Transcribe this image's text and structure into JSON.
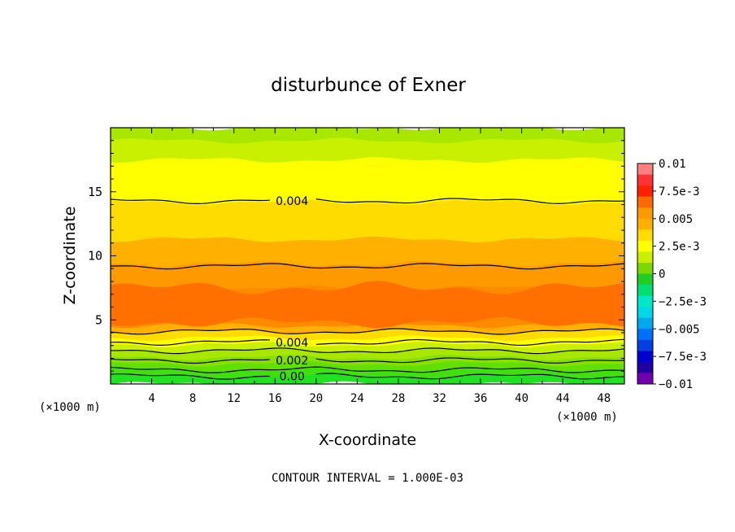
{
  "chart_data": {
    "type": "heatmap",
    "title": "disturbunce of Exner",
    "xlabel": "X-coordinate",
    "ylabel": "Z-coordinate",
    "x_unit": "(×1000 m)",
    "y_unit": "(×1000 m)",
    "footer": "CONTOUR INTERVAL = 1.000E-03",
    "xlim": [
      0,
      50
    ],
    "ylim": [
      0,
      20
    ],
    "x_ticks": [
      4,
      8,
      12,
      16,
      20,
      24,
      28,
      32,
      36,
      40,
      44,
      48
    ],
    "x_tick_labels": [
      "4",
      "8",
      "12",
      "16",
      "20",
      "24",
      "28",
      "32",
      "36",
      "40",
      "44",
      "48"
    ],
    "y_ticks": [
      5,
      10,
      15
    ],
    "y_tick_labels": [
      "5",
      "10",
      "15"
    ],
    "contour_interval": 0.001,
    "color_levels": [
      -0.01,
      -0.0075,
      -0.005,
      -0.0025,
      0,
      0.0025,
      0.005,
      0.0075,
      0.01
    ],
    "colorbar_labels": [
      "0.01",
      "7.5e-3",
      "0.005",
      "2.5e-3",
      "0",
      "−2.5e-3",
      "−0.005",
      "−7.5e-3",
      "−0.01"
    ],
    "colorbar_colors": [
      "#ff8080",
      "#ff3333",
      "#ff2000",
      "#ff6a00",
      "#ff9900",
      "#ffb000",
      "#ffdc00",
      "#ffff00",
      "#c8f000",
      "#7ad900",
      "#22cc22",
      "#00e070",
      "#00e8c8",
      "#00d8e8",
      "#00a8f0",
      "#0070f8",
      "#0040e0",
      "#0000d0",
      "#2000a0",
      "#7000b0"
    ],
    "bands": [
      {
        "z_bottom": 0.0,
        "z_top": 0.6,
        "value": 0.0002,
        "color": "#22e022"
      },
      {
        "z_bottom": 0.6,
        "z_top": 1.1,
        "value": 0.0007,
        "color": "#40e010"
      },
      {
        "z_bottom": 1.1,
        "z_top": 1.6,
        "value": 0.0012,
        "color": "#60e000"
      },
      {
        "z_bottom": 1.6,
        "z_top": 2.1,
        "value": 0.0017,
        "color": "#88e000"
      },
      {
        "z_bottom": 2.1,
        "z_top": 2.6,
        "value": 0.0022,
        "color": "#a8e800"
      },
      {
        "z_bottom": 2.6,
        "z_top": 3.1,
        "value": 0.0027,
        "color": "#c8f000"
      },
      {
        "z_bottom": 3.1,
        "z_top": 3.6,
        "value": 0.0032,
        "color": "#ffff00"
      },
      {
        "z_bottom": 3.6,
        "z_top": 4.1,
        "value": 0.0037,
        "color": "#ffdc00"
      },
      {
        "z_bottom": 4.1,
        "z_top": 4.6,
        "value": 0.0045,
        "color": "#ffb000"
      },
      {
        "z_bottom": 4.6,
        "z_top": 7.5,
        "value": 0.0055,
        "color": "#ff8a00"
      },
      {
        "z_bottom": 7.5,
        "z_top": 9.4,
        "value": 0.005,
        "color": "#ff9900"
      },
      {
        "z_bottom": 9.4,
        "z_top": 11.3,
        "value": 0.0045,
        "color": "#ffb000"
      },
      {
        "z_bottom": 11.3,
        "z_top": 14.2,
        "value": 0.0042,
        "color": "#ffdc00"
      },
      {
        "z_bottom": 14.2,
        "z_top": 17.5,
        "value": 0.0032,
        "color": "#ffff00"
      },
      {
        "z_bottom": 17.5,
        "z_top": 19.0,
        "value": 0.0027,
        "color": "#c8f000"
      },
      {
        "z_bottom": 19.0,
        "z_top": 20.0,
        "value": 0.0022,
        "color": "#a8e800"
      }
    ],
    "core_region": {
      "x_range": [
        0,
        50
      ],
      "z_range": [
        4.8,
        7.5
      ],
      "value": 0.0058,
      "color": "#ff7000"
    },
    "contours": [
      {
        "value": 0.0,
        "z": 0.6,
        "label": "0.00",
        "label_x": 17.5
      },
      {
        "value": 0.001,
        "z": 1.1,
        "label": "",
        "label_x": null
      },
      {
        "value": 0.002,
        "z": 1.85,
        "label": "0.002",
        "label_x": 17.5
      },
      {
        "value": 0.003,
        "z": 2.6,
        "label": "",
        "label_x": null
      },
      {
        "value": 0.004,
        "z": 3.25,
        "label": "0.004",
        "label_x": 17.5
      },
      {
        "value": 0.004,
        "z": 4.1,
        "label": "",
        "label_x": null
      },
      {
        "value": 0.005,
        "z": 9.2,
        "label": "",
        "label_x": null
      },
      {
        "value": 0.004,
        "z": 14.3,
        "label": "0.004",
        "label_x": 17.5
      }
    ]
  }
}
